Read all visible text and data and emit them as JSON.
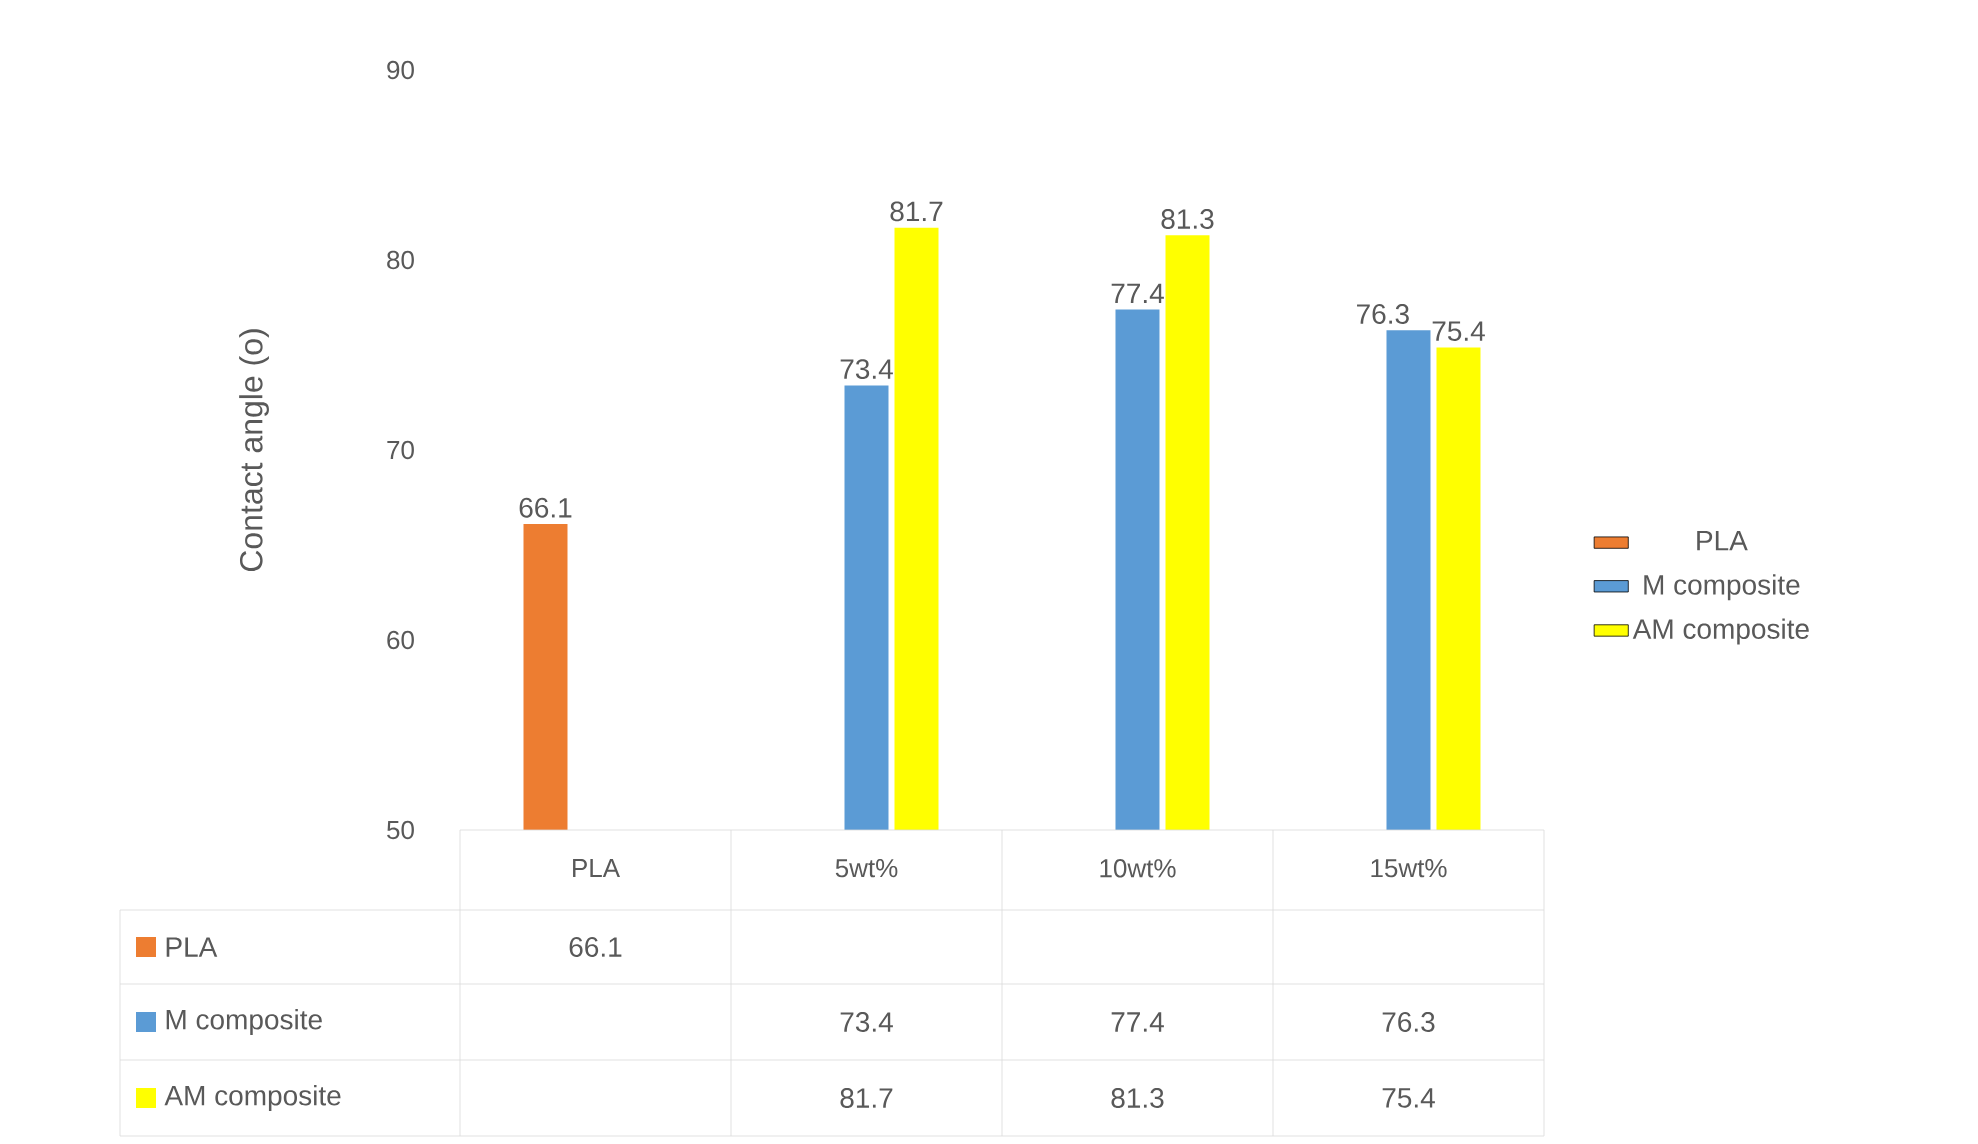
{
  "chart_data": {
    "type": "bar",
    "ylabel": "Contact angle (o)",
    "categories": [
      "PLA",
      "5wt%",
      "10wt%",
      "15wt%"
    ],
    "series": [
      {
        "name": "PLA",
        "color": "#ed7d31",
        "values": [
          66.1,
          null,
          null,
          null
        ],
        "value_labels": [
          "66.1",
          null,
          null,
          null
        ]
      },
      {
        "name": "M composite",
        "color": "#5b9bd5",
        "values": [
          null,
          73.4,
          77.4,
          76.3
        ],
        "value_labels": [
          null,
          "73.4",
          "77.4",
          "76.3"
        ]
      },
      {
        "name": "AM composite",
        "color": "#ffff00",
        "values": [
          null,
          81.7,
          81.3,
          75.4
        ],
        "value_labels": [
          null,
          "81.7",
          "81.3",
          "75.4"
        ]
      }
    ],
    "ylim": [
      50,
      90
    ],
    "yticks": [
      50,
      60,
      70,
      80,
      90
    ],
    "legend": "right",
    "annotations": [
      "66.1",
      "73.4",
      "77.4",
      "76.3",
      "81.7",
      "81.3",
      "75.4"
    ]
  }
}
